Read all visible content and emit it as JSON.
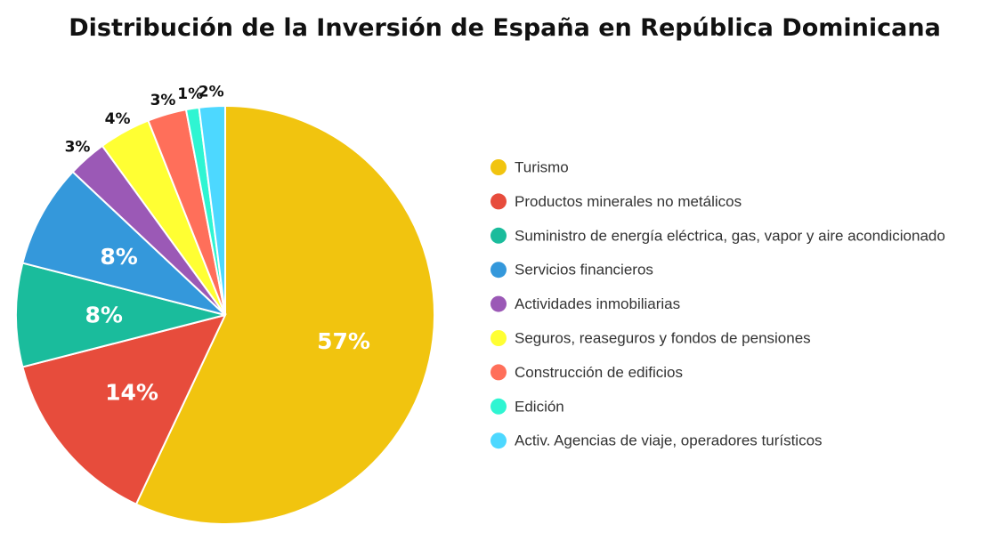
{
  "chart_data": {
    "type": "pie",
    "title": "Distribución de la Inversión de España en República Dominicana",
    "legend_position": "right",
    "slices": [
      {
        "label": "Turismo",
        "value": 57,
        "display": "57%",
        "color": "#F1C40F"
      },
      {
        "label": "Productos minerales no metálicos",
        "value": 14,
        "display": "14%",
        "color": "#E74C3C"
      },
      {
        "label": "Suministro de energía eléctrica, gas, vapor y aire acondicionado",
        "value": 8,
        "display": "8%",
        "color": "#1ABC9C"
      },
      {
        "label": "Servicios financieros",
        "value": 8,
        "display": "8%",
        "color": "#3498DB"
      },
      {
        "label": "Actividades inmobiliarias",
        "value": 3,
        "display": "3%",
        "color": "#9B59B6"
      },
      {
        "label": "Seguros, reaseguros y fondos de pensiones",
        "value": 4,
        "display": "4%",
        "color": "#FFFF33"
      },
      {
        "label": "Construcción de edificios",
        "value": 3,
        "display": "3%",
        "color": "#FF6F5A"
      },
      {
        "label": "Edición",
        "value": 1,
        "display": "1%",
        "color": "#2FF5D2"
      },
      {
        "label": "Activ. Agencias de viaje, operadores turísticos",
        "value": 2,
        "display": "2%",
        "color": "#4DD8FF"
      }
    ]
  }
}
